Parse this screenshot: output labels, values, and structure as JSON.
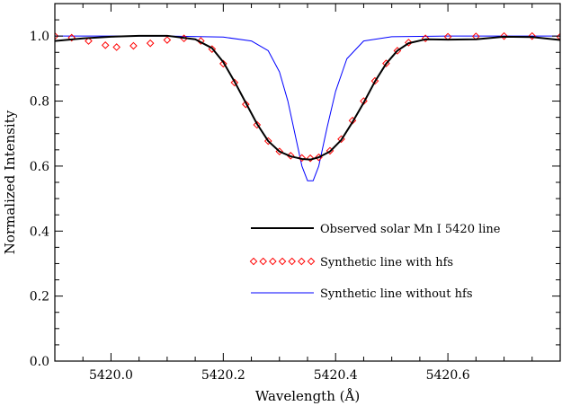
{
  "chart_data": {
    "type": "line",
    "title": "",
    "xlabel": "Wavelength (Å)",
    "ylabel": "Normalized Intensity",
    "xlim": [
      5419.9,
      5420.8
    ],
    "ylim": [
      0.0,
      1.1
    ],
    "xticks": [
      5420.0,
      5420.2,
      5420.4,
      5420.6
    ],
    "xtick_labels": [
      "5420.0",
      "5420.2",
      "5420.4",
      "5420.6"
    ],
    "yticks": [
      0.0,
      0.2,
      0.4,
      0.6,
      0.8,
      1.0
    ],
    "ytick_labels": [
      "0.0",
      "0.2",
      "0.4",
      "0.6",
      "0.8",
      "1.0"
    ],
    "grid": false,
    "legend_position": "lower-right",
    "series": [
      {
        "name": "Observed solar Mn I 5420 line",
        "style": "solid",
        "color": "#000000",
        "x": [
          5419.9,
          5419.95,
          5420.0,
          5420.05,
          5420.1,
          5420.15,
          5420.18,
          5420.2,
          5420.22,
          5420.24,
          5420.26,
          5420.28,
          5420.3,
          5420.32,
          5420.34,
          5420.355,
          5420.37,
          5420.39,
          5420.41,
          5420.43,
          5420.45,
          5420.47,
          5420.49,
          5420.51,
          5420.53,
          5420.56,
          5420.6,
          5420.65,
          5420.7,
          5420.75,
          5420.8
        ],
        "y": [
          0.985,
          0.993,
          0.998,
          1.001,
          1.001,
          0.99,
          0.963,
          0.92,
          0.86,
          0.795,
          0.73,
          0.677,
          0.645,
          0.63,
          0.622,
          0.62,
          0.627,
          0.645,
          0.68,
          0.735,
          0.795,
          0.86,
          0.915,
          0.955,
          0.978,
          0.99,
          0.989,
          0.99,
          0.998,
          0.997,
          0.988
        ]
      },
      {
        "name": "Synthetic line with hfs",
        "style": "diamond-markers",
        "color": "#ff0000",
        "x": [
          5419.9,
          5419.93,
          5419.96,
          5419.99,
          5420.01,
          5420.04,
          5420.07,
          5420.1,
          5420.13,
          5420.16,
          5420.18,
          5420.2,
          5420.22,
          5420.24,
          5420.26,
          5420.28,
          5420.3,
          5420.32,
          5420.34,
          5420.355,
          5420.37,
          5420.39,
          5420.41,
          5420.43,
          5420.45,
          5420.47,
          5420.49,
          5420.51,
          5420.53,
          5420.56,
          5420.6,
          5420.65,
          5420.7,
          5420.75,
          5420.8
        ],
        "y": [
          1.0,
          0.995,
          0.985,
          0.972,
          0.966,
          0.97,
          0.978,
          0.988,
          0.993,
          0.985,
          0.96,
          0.915,
          0.857,
          0.79,
          0.727,
          0.677,
          0.645,
          0.632,
          0.625,
          0.624,
          0.627,
          0.647,
          0.683,
          0.74,
          0.8,
          0.862,
          0.916,
          0.955,
          0.98,
          0.993,
          0.998,
          0.999,
          1.0,
          1.0,
          0.998
        ]
      },
      {
        "name": "Synthetic line without hfs",
        "style": "solid",
        "color": "#0000ff",
        "x": [
          5419.9,
          5420.0,
          5420.1,
          5420.2,
          5420.25,
          5420.28,
          5420.3,
          5420.315,
          5420.33,
          5420.34,
          5420.35,
          5420.36,
          5420.37,
          5420.385,
          5420.4,
          5420.42,
          5420.45,
          5420.5,
          5420.6,
          5420.7,
          5420.8
        ],
        "y": [
          1.0,
          1.0,
          1.0,
          0.997,
          0.985,
          0.955,
          0.89,
          0.8,
          0.68,
          0.6,
          0.555,
          0.555,
          0.6,
          0.72,
          0.83,
          0.93,
          0.985,
          0.998,
          1.0,
          1.0,
          1.0
        ]
      }
    ]
  }
}
